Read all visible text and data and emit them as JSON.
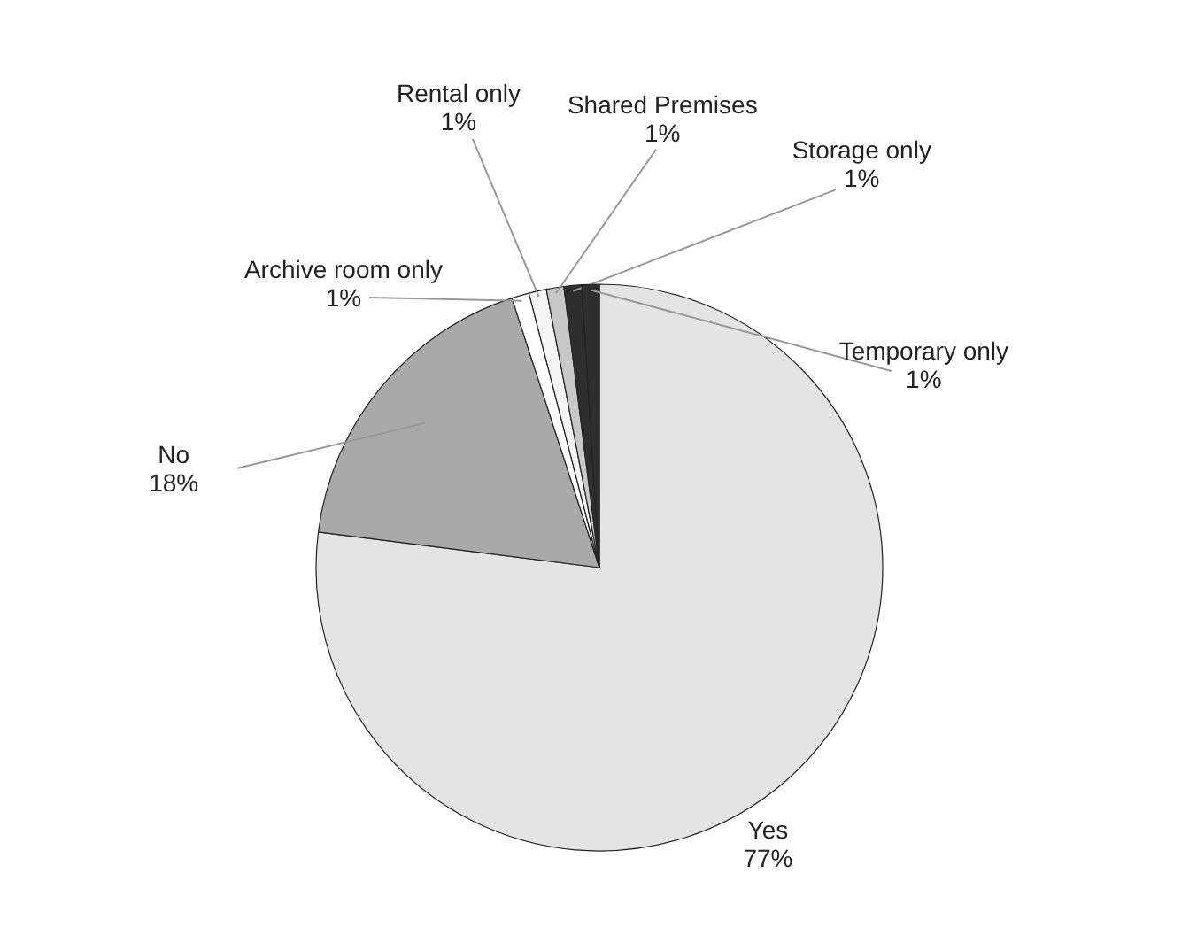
{
  "chart_data": {
    "type": "pie",
    "categories": [
      "Yes",
      "No",
      "Archive room only",
      "Rental only",
      "Shared Premises",
      "Storage only",
      "Temporary only"
    ],
    "values": [
      77,
      18,
      1,
      1,
      1,
      1,
      1
    ],
    "value_labels": [
      "77%",
      "18%",
      "1%",
      "1%",
      "1%",
      "1%",
      "1%"
    ],
    "colors": [
      "#e4e4e4",
      "#a9a9a9",
      "#ffffff",
      "#f4f4f4",
      "#c8c8c8",
      "#2e2e2e",
      "#2e2e2e"
    ]
  }
}
